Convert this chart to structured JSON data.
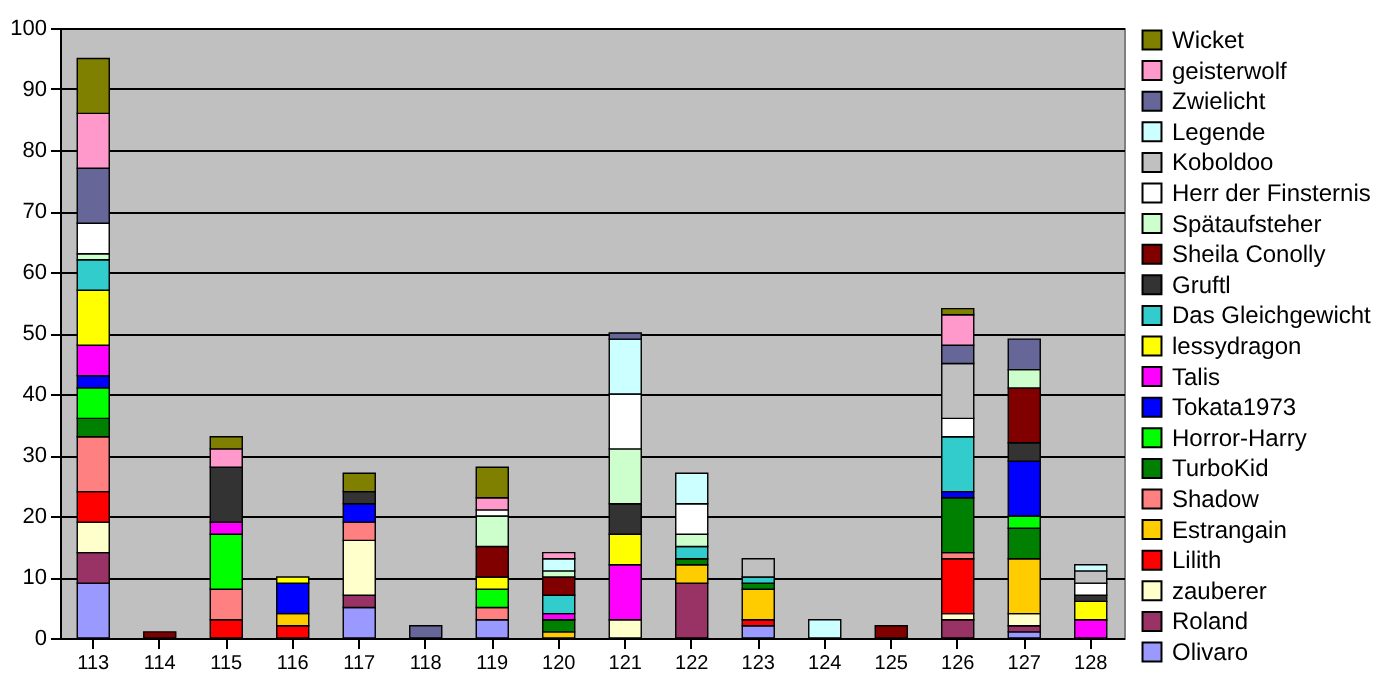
{
  "chart_data": {
    "type": "bar",
    "stacked": true,
    "categories": [
      "113",
      "114",
      "115",
      "116",
      "117",
      "118",
      "119",
      "120",
      "121",
      "122",
      "123",
      "124",
      "125",
      "126",
      "127",
      "128"
    ],
    "ylim": [
      0,
      100
    ],
    "yticks": [
      0,
      10,
      20,
      30,
      40,
      50,
      60,
      70,
      80,
      90,
      100
    ],
    "grid": "y",
    "legend": "right",
    "series": [
      {
        "name": "Olivaro",
        "color": "#9999ff",
        "values": [
          9,
          null,
          null,
          null,
          5,
          null,
          3,
          null,
          null,
          null,
          2,
          null,
          null,
          null,
          1,
          null
        ]
      },
      {
        "name": "Roland",
        "color": "#993366",
        "values": [
          5,
          null,
          null,
          null,
          2,
          null,
          null,
          null,
          null,
          9,
          null,
          null,
          null,
          3,
          1,
          null
        ]
      },
      {
        "name": "zauberer",
        "color": "#ffffcc",
        "values": [
          5,
          null,
          null,
          null,
          9,
          null,
          null,
          null,
          3,
          null,
          null,
          null,
          null,
          1,
          2,
          null
        ]
      },
      {
        "name": "Lilith",
        "color": "#ff0000",
        "values": [
          5,
          null,
          3,
          2,
          null,
          null,
          null,
          null,
          null,
          null,
          1,
          null,
          null,
          9,
          null,
          null
        ]
      },
      {
        "name": "Estrangain",
        "color": "#ffcc00",
        "values": [
          null,
          null,
          null,
          2,
          null,
          null,
          null,
          1,
          null,
          3,
          5,
          null,
          null,
          null,
          9,
          null
        ]
      },
      {
        "name": "Shadow",
        "color": "#ff8080",
        "values": [
          9,
          null,
          5,
          null,
          3,
          null,
          2,
          null,
          null,
          null,
          null,
          null,
          null,
          1,
          null,
          null
        ]
      },
      {
        "name": "TurboKid",
        "color": "#008000",
        "values": [
          3,
          null,
          null,
          null,
          null,
          null,
          null,
          2,
          null,
          1,
          1,
          null,
          null,
          9,
          5,
          null
        ]
      },
      {
        "name": "Horror-Harry",
        "color": "#00ff00",
        "values": [
          5,
          null,
          9,
          null,
          null,
          null,
          3,
          null,
          null,
          null,
          null,
          null,
          null,
          null,
          2,
          null
        ]
      },
      {
        "name": "Tokata1973",
        "color": "#0000ff",
        "values": [
          2,
          null,
          null,
          5,
          3,
          null,
          null,
          null,
          null,
          null,
          null,
          null,
          null,
          1,
          9,
          null
        ]
      },
      {
        "name": "Talis",
        "color": "#ff00ff",
        "values": [
          5,
          null,
          2,
          null,
          null,
          null,
          null,
          1,
          9,
          null,
          null,
          null,
          null,
          null,
          null,
          3
        ]
      },
      {
        "name": "lessydragon",
        "color": "#ffff00",
        "values": [
          9,
          null,
          null,
          1,
          null,
          null,
          2,
          null,
          5,
          null,
          null,
          null,
          null,
          null,
          null,
          3
        ]
      },
      {
        "name": "Das Gleichgewicht",
        "color": "#33cccc",
        "values": [
          5,
          null,
          null,
          null,
          null,
          null,
          null,
          3,
          null,
          2,
          1,
          null,
          null,
          9,
          null,
          null
        ]
      },
      {
        "name": "Gruftl",
        "color": "#333333",
        "values": [
          null,
          null,
          9,
          null,
          2,
          null,
          null,
          null,
          5,
          null,
          null,
          null,
          null,
          null,
          3,
          1
        ]
      },
      {
        "name": "Sheila Conolly",
        "color": "#800000",
        "values": [
          null,
          1,
          null,
          null,
          null,
          null,
          5,
          3,
          null,
          null,
          null,
          null,
          2,
          null,
          9,
          null
        ]
      },
      {
        "name": "Spätaufsteher",
        "color": "#ccffcc",
        "values": [
          1,
          null,
          null,
          null,
          null,
          null,
          5,
          1,
          9,
          2,
          null,
          null,
          null,
          null,
          3,
          null
        ]
      },
      {
        "name": "Herr der Finsternis",
        "color": "#ffffff",
        "values": [
          5,
          null,
          null,
          null,
          null,
          null,
          1,
          null,
          9,
          5,
          null,
          null,
          null,
          3,
          null,
          2
        ]
      },
      {
        "name": "Koboldoo",
        "color": "#c0c0c0",
        "values": [
          null,
          null,
          null,
          null,
          null,
          null,
          null,
          null,
          null,
          null,
          3,
          null,
          null,
          9,
          null,
          2
        ]
      },
      {
        "name": "Legende",
        "color": "#ccffff",
        "values": [
          null,
          null,
          null,
          null,
          null,
          null,
          null,
          2,
          9,
          5,
          null,
          3,
          null,
          null,
          null,
          1
        ]
      },
      {
        "name": "Zwielicht",
        "color": "#666699",
        "values": [
          9,
          null,
          null,
          null,
          null,
          2,
          null,
          null,
          1,
          null,
          null,
          null,
          null,
          3,
          5,
          null
        ]
      },
      {
        "name": "geisterwolf",
        "color": "#ff99cc",
        "values": [
          9,
          null,
          3,
          null,
          null,
          null,
          2,
          1,
          null,
          null,
          null,
          null,
          null,
          5,
          null,
          null
        ]
      },
      {
        "name": "Wicket",
        "color": "#808000",
        "values": [
          9,
          null,
          2,
          null,
          3,
          null,
          5,
          null,
          null,
          null,
          null,
          null,
          null,
          1,
          null,
          null
        ]
      }
    ]
  }
}
